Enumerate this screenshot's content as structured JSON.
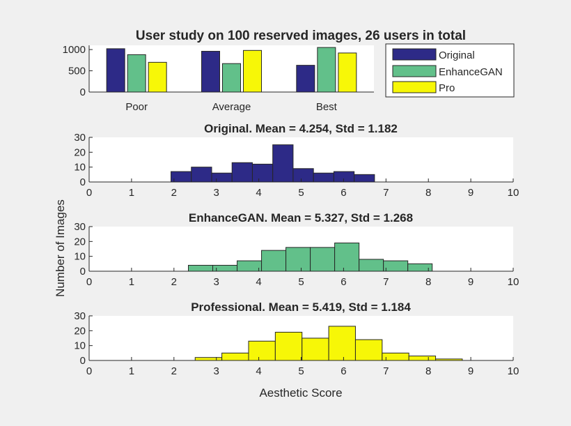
{
  "colors": {
    "background": "#f0f0f0",
    "original": "#2d2a87",
    "enhancegan": "#62c08a",
    "pro": "#f7f707",
    "edge": "#262626"
  },
  "chart_data": [
    {
      "type": "bar",
      "title": "User study on 100 reserved images, 26 users in total",
      "categories": [
        "Poor",
        "Average",
        "Best"
      ],
      "series": [
        {
          "name": "Original",
          "values": [
            1020,
            960,
            630
          ]
        },
        {
          "name": "EnhanceGAN",
          "values": [
            880,
            670,
            1050
          ]
        },
        {
          "name": "Pro",
          "values": [
            700,
            980,
            920
          ]
        }
      ],
      "ylim": [
        0,
        1100
      ],
      "yticks": [
        "0",
        "500",
        "1000"
      ],
      "legend": "top-right",
      "grid": false
    },
    {
      "type": "bar",
      "subtype": "histogram",
      "title": "Original. Mean = 4.254, Std = 1.182",
      "bin_width": 0.48,
      "bins": [
        [
          1.93,
          7
        ],
        [
          2.41,
          10
        ],
        [
          2.89,
          6
        ],
        [
          3.37,
          13
        ],
        [
          3.85,
          12
        ],
        [
          4.33,
          25
        ],
        [
          4.81,
          9
        ],
        [
          5.29,
          6
        ],
        [
          5.77,
          7
        ],
        [
          6.25,
          5
        ]
      ],
      "xlim": [
        0,
        10
      ],
      "ylim": [
        0,
        30
      ],
      "xticks": [
        "0",
        "1",
        "2",
        "3",
        "4",
        "5",
        "6",
        "7",
        "8",
        "9",
        "10"
      ],
      "yticks": [
        "0",
        "10",
        "20",
        "30"
      ],
      "grid": false
    },
    {
      "type": "bar",
      "subtype": "histogram",
      "title": "EnhanceGAN. Mean = 5.327, Std = 1.268",
      "bin_width": 0.575,
      "bins": [
        [
          2.34,
          4
        ],
        [
          2.915,
          4
        ],
        [
          3.49,
          7
        ],
        [
          4.065,
          14
        ],
        [
          4.64,
          16
        ],
        [
          5.215,
          16
        ],
        [
          5.79,
          19
        ],
        [
          6.365,
          8
        ],
        [
          6.94,
          7
        ],
        [
          7.515,
          5
        ]
      ],
      "xlim": [
        0,
        10
      ],
      "ylim": [
        0,
        30
      ],
      "xticks": [
        "0",
        "1",
        "2",
        "3",
        "4",
        "5",
        "6",
        "7",
        "8",
        "9",
        "10"
      ],
      "yticks": [
        "0",
        "10",
        "20",
        "30"
      ],
      "grid": false
    },
    {
      "type": "bar",
      "subtype": "histogram",
      "title": "Professional. Mean = 5.419, Std = 1.184",
      "bin_width": 0.63,
      "bins": [
        [
          2.5,
          2
        ],
        [
          3.13,
          5
        ],
        [
          3.76,
          13
        ],
        [
          4.39,
          19
        ],
        [
          5.02,
          15
        ],
        [
          5.65,
          23
        ],
        [
          6.28,
          14
        ],
        [
          6.91,
          5
        ],
        [
          7.54,
          3
        ],
        [
          8.17,
          1
        ]
      ],
      "xlim": [
        0,
        10
      ],
      "ylim": [
        0,
        30
      ],
      "xticks": [
        "0",
        "1",
        "2",
        "3",
        "4",
        "5",
        "6",
        "7",
        "8",
        "9",
        "10"
      ],
      "yticks": [
        "0",
        "10",
        "20",
        "30"
      ],
      "xlabel": "Aesthetic Score",
      "grid": false
    }
  ],
  "shared_ylabel": "Number of Images"
}
